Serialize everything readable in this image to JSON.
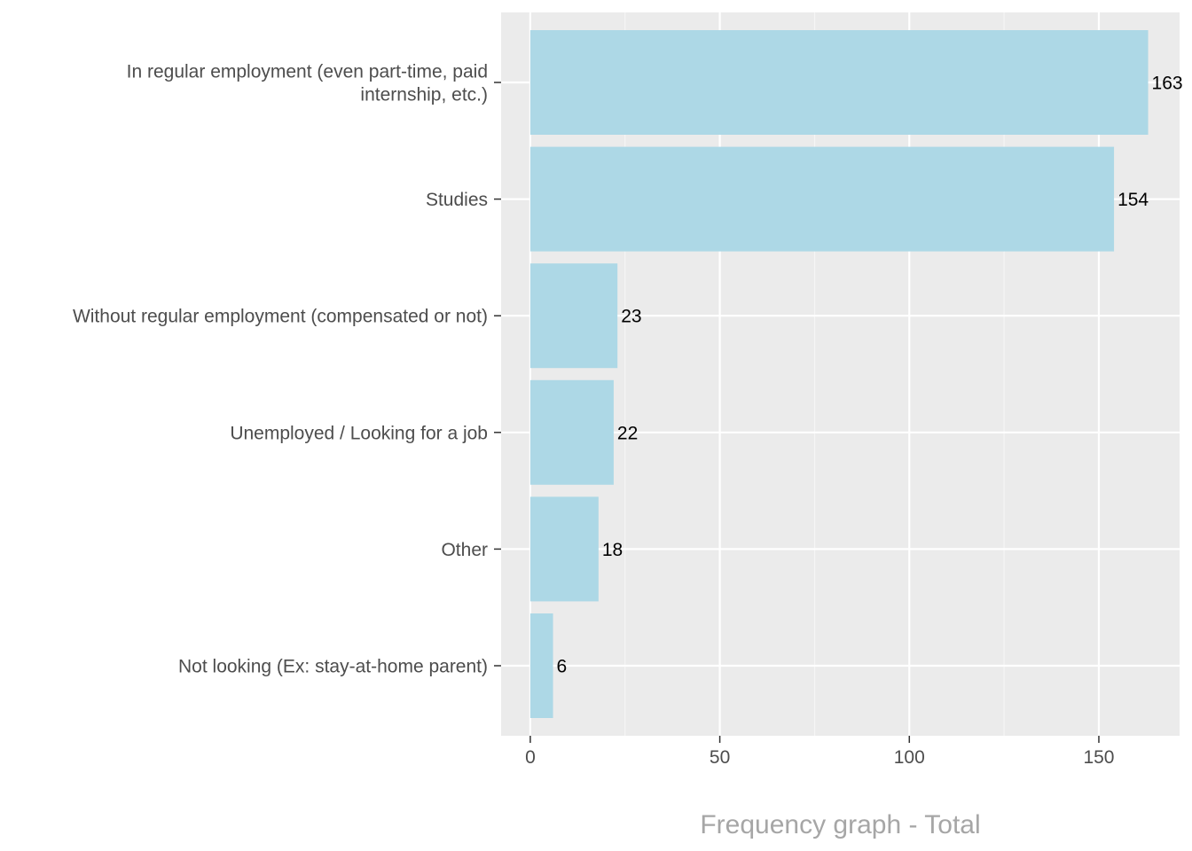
{
  "chart_data": {
    "type": "bar",
    "orientation": "horizontal",
    "categories": [
      "In regular employment (even part-time, paid internship, etc.)",
      "Studies",
      "Without regular employment (compensated or not)",
      "Unemployed / Looking for a job",
      "Other",
      "Not looking (Ex: stay-at-home parent)"
    ],
    "category_lines": [
      [
        "In regular employment (even part-time, paid",
        "internship, etc.)"
      ],
      [
        "Studies"
      ],
      [
        "Without regular employment (compensated or not)"
      ],
      [
        "Unemployed / Looking for a job"
      ],
      [
        "Other"
      ],
      [
        "Not looking (Ex: stay-at-home parent)"
      ]
    ],
    "values": [
      163,
      154,
      23,
      22,
      18,
      6
    ],
    "data_labels": [
      "163",
      "154",
      "23",
      "22",
      "18",
      "6"
    ],
    "xlabel": "Frequency graph - Total",
    "ylabel": "",
    "xlim": [
      -7.7,
      171.3
    ],
    "x_ticks": [
      0,
      50,
      100,
      150
    ],
    "x_tick_labels": [
      "0",
      "50",
      "100",
      "150"
    ],
    "grid": true,
    "colors": {
      "bar": "#add8e6",
      "panel": "#ebebeb",
      "grid_major": "#ffffff",
      "grid_minor": "#f5f5f5",
      "axis_text": "#4d4d4d",
      "title_text": "#a6a6a6",
      "data_label": "#000000"
    }
  }
}
